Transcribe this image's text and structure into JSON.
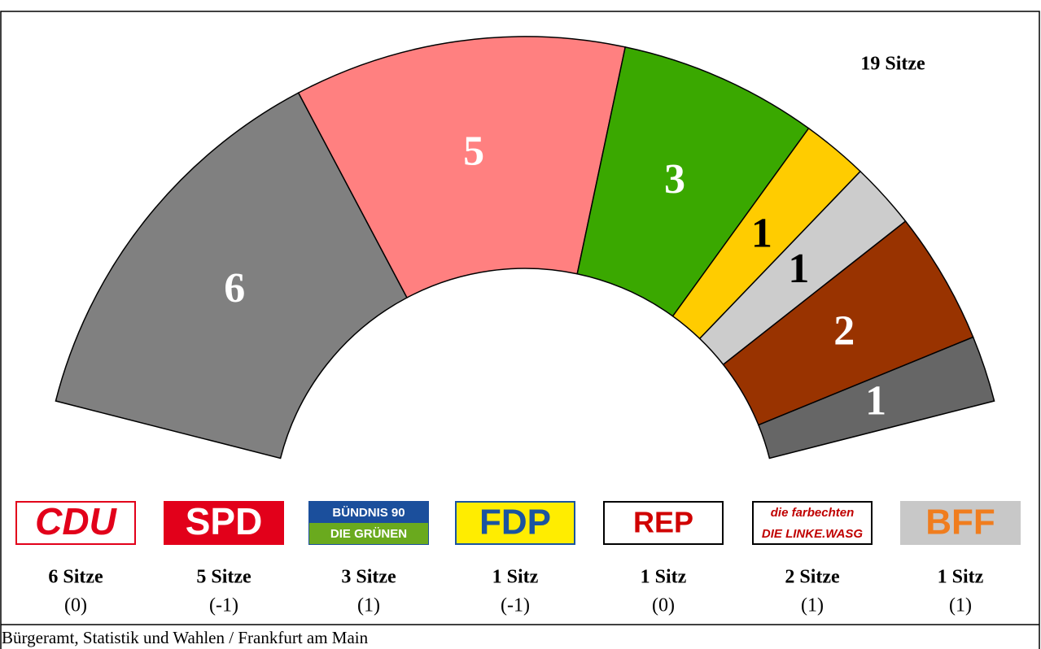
{
  "chart_data": {
    "type": "parliament",
    "title": "19 Sitze",
    "values": [
      6,
      5,
      3,
      1,
      1,
      2,
      1
    ],
    "colors": [
      "#808080",
      "#ff8080",
      "#3aa800",
      "#ffcc00",
      "#cccccc",
      "#993300",
      "#666666"
    ],
    "label_colors": [
      "#ffffff",
      "#ffffff",
      "#ffffff",
      "#000000",
      "#000000",
      "#ffffff",
      "#ffffff"
    ],
    "logos": [
      [
        "CDU"
      ],
      [
        "SPD"
      ],
      [
        "BÜNDNIS 90",
        "DIE GRÜNEN"
      ],
      [
        "FDP"
      ],
      [
        "REP"
      ],
      [
        "die farbechten",
        "DIE LINKE.WASG"
      ],
      [
        "BFF"
      ]
    ],
    "seat_labels": [
      "6 Sitze",
      "5 Sitze",
      "3 Sitze",
      "1 Sitz",
      "1 Sitz",
      "2 Sitze",
      "1 Sitz"
    ],
    "changes": [
      0,
      -1,
      1,
      -1,
      0,
      1,
      1
    ],
    "change_labels": [
      "(0)",
      "(-1)",
      "(1)",
      "(-1)",
      "(0)",
      "(1)",
      "(1)"
    ],
    "source": "Bürgeramt, Statistik und Wahlen / Frankfurt am Main"
  }
}
